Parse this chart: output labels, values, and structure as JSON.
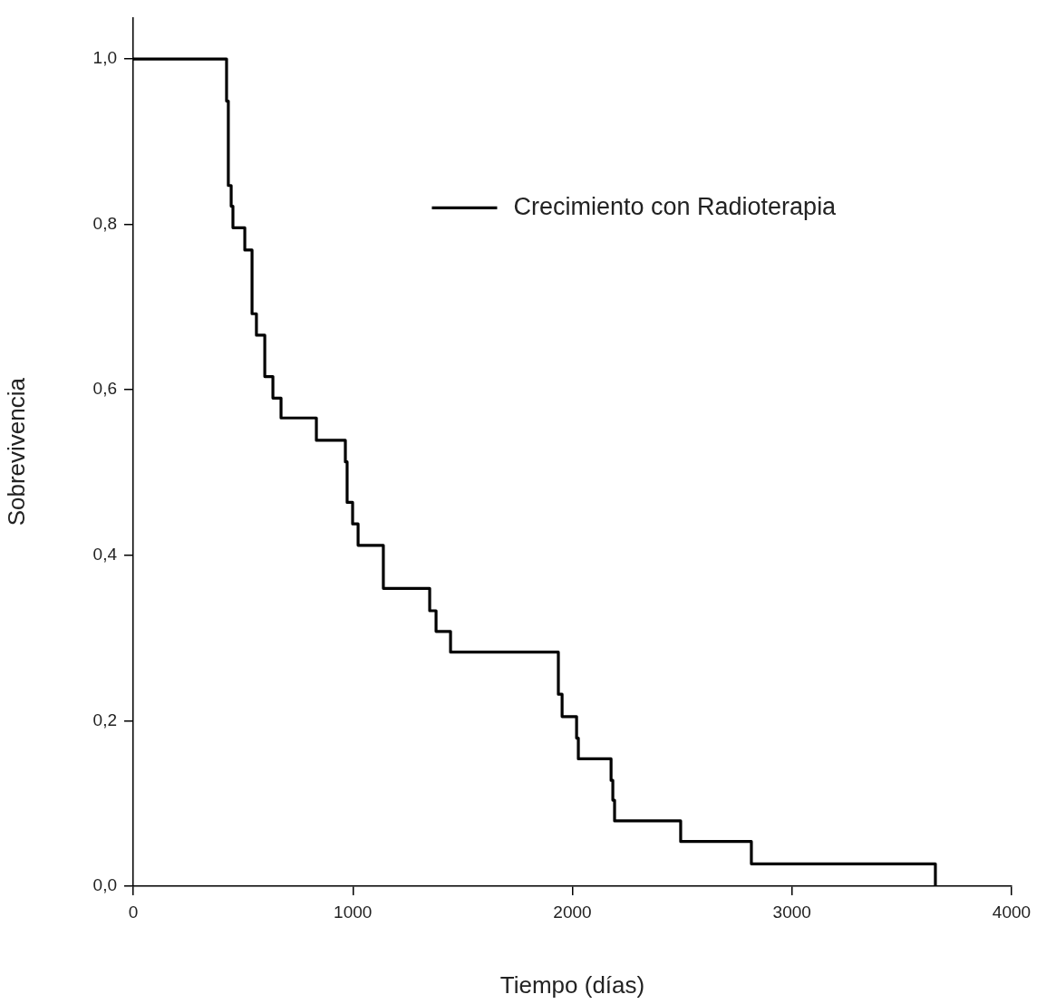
{
  "chart_data": {
    "type": "step",
    "xlabel": "Tiempo (días)",
    "ylabel": "Sobrevivencia",
    "xlim": [
      0,
      4000
    ],
    "xticks": [
      0,
      1000,
      2000,
      3000,
      4000
    ],
    "ylim": [
      0,
      1.05
    ],
    "yticks": [
      {
        "value": 0,
        "label": "0,0"
      },
      {
        "value": 0.2,
        "label": "0,2"
      },
      {
        "value": 0.4,
        "label": "0,4"
      },
      {
        "value": 0.6,
        "label": "0,6"
      },
      {
        "value": 0.8,
        "label": "0,8"
      },
      {
        "value": 1,
        "label": "1,0"
      }
    ],
    "grid": false,
    "legend": "top",
    "marker": "none",
    "line_style": "solid",
    "series": [
      {
        "name": "Crecimiento con Radioterapia",
        "color": "#000000",
        "x": [
          0,
          425,
          433,
          446,
          454,
          508,
          541,
          561,
          599,
          636,
          673,
          834,
          966,
          974,
          999,
          1024,
          1139,
          1350,
          1379,
          1445,
          1936,
          1953,
          2019,
          2027,
          2176,
          2184,
          2192,
          2493,
          2815,
          3653
        ],
        "values": [
          1,
          0.949,
          0.847,
          0.822,
          0.796,
          0.769,
          0.692,
          0.666,
          0.616,
          0.59,
          0.566,
          0.539,
          0.513,
          0.464,
          0.438,
          0.412,
          0.36,
          0.333,
          0.308,
          0.283,
          0.232,
          0.205,
          0.179,
          0.154,
          0.128,
          0.104,
          0.079,
          0.054,
          0.027,
          0
        ]
      }
    ]
  }
}
